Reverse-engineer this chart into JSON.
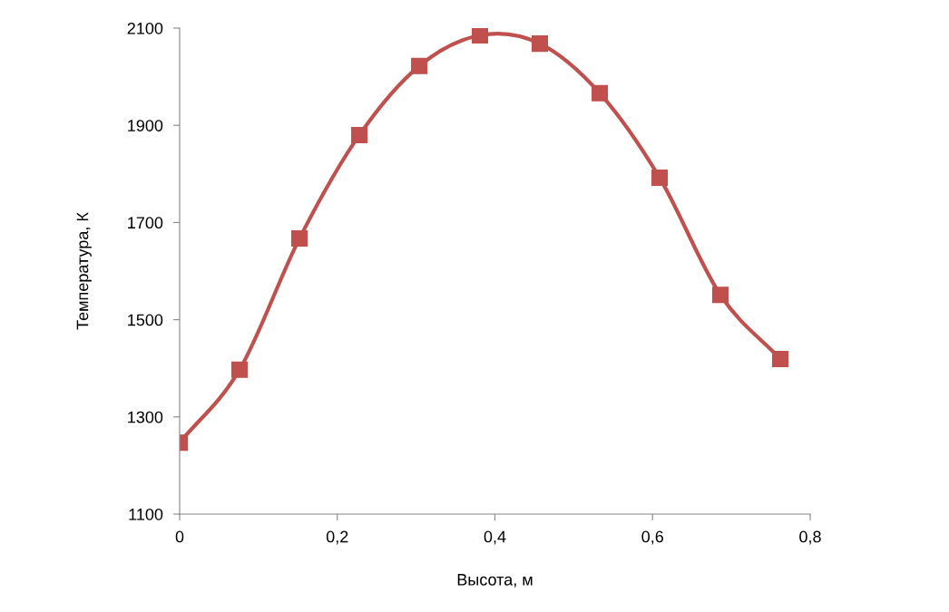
{
  "chart_data": {
    "type": "line",
    "xlabel": "Высота, м",
    "ylabel": "Температура, К",
    "x": [
      0,
      0.076,
      0.152,
      0.228,
      0.304,
      0.381,
      0.457,
      0.533,
      0.609,
      0.686,
      0.762
    ],
    "series": [
      {
        "color": "#c0504d",
        "values": [
          1247,
          1397,
          1667,
          1880,
          2022,
          2085,
          2068,
          1966,
          1792,
          1551,
          1419
        ]
      }
    ],
    "xlim": [
      0,
      0.8
    ],
    "xticks": [
      {
        "value": 0,
        "label": "0"
      },
      {
        "value": 0.2,
        "label": "0,2"
      },
      {
        "value": 0.4,
        "label": "0,4"
      },
      {
        "value": 0.6,
        "label": "0,6"
      },
      {
        "value": 0.8,
        "label": "0,8"
      }
    ],
    "ylim": [
      1100,
      2100
    ],
    "yticks": [
      1100,
      1300,
      1500,
      1700,
      1900,
      2100
    ],
    "grid": false,
    "legend": false,
    "marker": "square",
    "line_style": "solid"
  }
}
